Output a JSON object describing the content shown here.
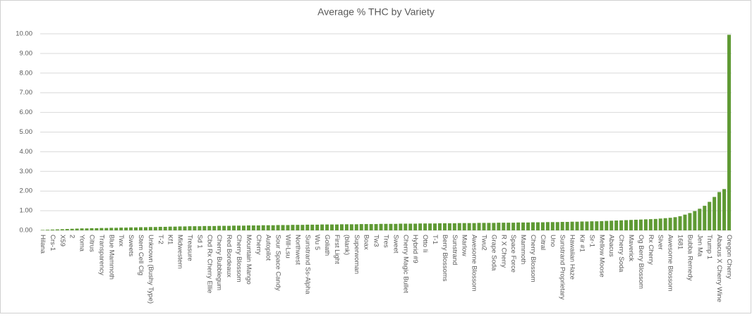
{
  "chart_data": {
    "type": "bar",
    "title": "Average % THC by Variety",
    "categories": [
      "Hilana",
      null,
      "Crs-1",
      null,
      "X59",
      null,
      "2",
      null,
      "Yoma",
      null,
      "Citrus",
      null,
      "Transparency",
      null,
      "Blue Mammoth",
      null,
      "Twx",
      null,
      "Sweets",
      null,
      "Stem Cell Clg",
      null,
      "Unknown (Bushy Type)",
      null,
      "T-2",
      null,
      "Kf1",
      null,
      "Midwestern",
      null,
      "Treasure",
      null,
      "Sd 1",
      null,
      "Cbd Rx Cherry Ellie",
      null,
      "Cherry Bubblegum",
      null,
      "Red Bordeaux",
      null,
      "Cherry Blossom",
      null,
      "Mountain Mango",
      null,
      "Cherry",
      null,
      "Autopilot",
      null,
      "Sour Space Candy",
      null,
      "Will-Lsu",
      null,
      "Northwest",
      null,
      "Sunstrand Ss-Alpha",
      null,
      "Wu 5",
      null,
      "Goliath",
      null,
      "First Light",
      null,
      "(blank)",
      null,
      "Superwoman",
      null,
      "Boax",
      null,
      "Tw3",
      null,
      "Tres",
      null,
      "Sweet",
      null,
      "Cherry Magic Bullet",
      null,
      "Hybrid #9",
      null,
      "Otto Ii",
      null,
      "T-1",
      null,
      "Berry Blossoms",
      null,
      "Sunstrand",
      null,
      "Marlow",
      null,
      "Awesome Blossom",
      null,
      "Twu2",
      null,
      "Grape Soda",
      null,
      "R X Cherry",
      null,
      "Space Force",
      null,
      "Mammoth",
      null,
      "Cherry Blossom",
      null,
      "Citral",
      null,
      "Uno",
      null,
      "Sunstrand Proprietary",
      null,
      "Hawaiian Haze",
      null,
      "Kir #1",
      null,
      "Sr-1",
      null,
      "Mellow Moose",
      null,
      "Abacus",
      null,
      "Cherry Soda",
      null,
      "Maverick",
      null,
      "Og Berry Blossom",
      null,
      "Rx Cherry",
      null,
      "Siver",
      null,
      "Awesome Blossom",
      null,
      "1681",
      null,
      "Bubba Remedy",
      null,
      "Jen Ma",
      null,
      "Trump 1",
      null,
      "Abacus X Cherry Wine",
      null,
      "Oregon Cherry"
    ],
    "values": [
      0.02,
      0.03,
      0.04,
      0.05,
      0.06,
      0.07,
      0.08,
      0.09,
      0.1,
      0.1,
      0.11,
      0.11,
      0.12,
      0.12,
      0.13,
      0.13,
      0.14,
      0.14,
      0.15,
      0.15,
      0.16,
      0.16,
      0.17,
      0.17,
      0.18,
      0.18,
      0.19,
      0.19,
      0.2,
      0.2,
      0.21,
      0.21,
      0.21,
      0.22,
      0.22,
      0.22,
      0.23,
      0.23,
      0.23,
      0.24,
      0.24,
      0.24,
      0.25,
      0.25,
      0.25,
      0.26,
      0.26,
      0.26,
      0.27,
      0.27,
      0.27,
      0.28,
      0.28,
      0.28,
      0.29,
      0.29,
      0.29,
      0.3,
      0.3,
      0.3,
      0.3,
      0.31,
      0.31,
      0.31,
      0.31,
      0.32,
      0.32,
      0.32,
      0.32,
      0.33,
      0.33,
      0.33,
      0.33,
      0.34,
      0.34,
      0.34,
      0.34,
      0.35,
      0.35,
      0.35,
      0.35,
      0.36,
      0.36,
      0.36,
      0.36,
      0.37,
      0.37,
      0.37,
      0.37,
      0.38,
      0.38,
      0.38,
      0.38,
      0.39,
      0.39,
      0.39,
      0.39,
      0.4,
      0.4,
      0.4,
      0.41,
      0.41,
      0.41,
      0.42,
      0.42,
      0.42,
      0.43,
      0.43,
      0.44,
      0.44,
      0.45,
      0.45,
      0.46,
      0.46,
      0.47,
      0.48,
      0.49,
      0.5,
      0.51,
      0.52,
      0.53,
      0.54,
      0.55,
      0.56,
      0.57,
      0.58,
      0.6,
      0.62,
      0.64,
      0.67,
      0.72,
      0.8,
      0.88,
      0.98,
      1.1,
      1.25,
      1.45,
      1.7,
      1.95,
      2.1,
      9.95
    ],
    "color": "#5f9a34",
    "ylim": [
      0,
      10
    ],
    "yticks": [
      {
        "value": 0,
        "label": "0.00"
      },
      {
        "value": 1,
        "label": "1.00"
      },
      {
        "value": 2,
        "label": "2.00"
      },
      {
        "value": 3,
        "label": "3.00"
      },
      {
        "value": 4,
        "label": "4.00"
      },
      {
        "value": 5,
        "label": "5.00"
      },
      {
        "value": 6,
        "label": "6.00"
      },
      {
        "value": 7,
        "label": "7.00"
      },
      {
        "value": 8,
        "label": "8.00"
      },
      {
        "value": 9,
        "label": "9.00"
      },
      {
        "value": 10,
        "label": "10.00"
      }
    ],
    "grid": true
  }
}
